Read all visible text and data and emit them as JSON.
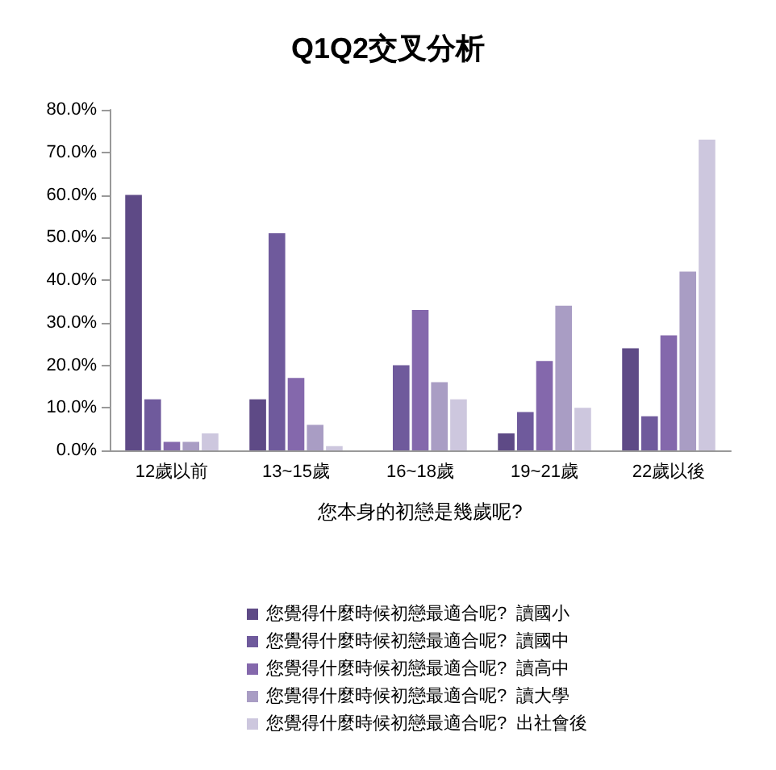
{
  "chart_data": {
    "type": "bar",
    "title": "Q1Q2交叉分析",
    "xlabel": "您本身的初戀是幾歲呢?",
    "categories": [
      "12歲以前",
      "13~15歲",
      "16~18歲",
      "19~21歲",
      "22歲以後"
    ],
    "series": [
      {
        "name": "您覺得什麼時候初戀最適合呢?  讀國小",
        "color": "#5e4a86",
        "values": [
          60,
          12,
          0,
          4,
          24
        ]
      },
      {
        "name": "您覺得什麼時候初戀最適合呢?  讀國中",
        "color": "#6f5a9c",
        "values": [
          12,
          51,
          20,
          9,
          8
        ]
      },
      {
        "name": "您覺得什麼時候初戀最適合呢?  讀高中",
        "color": "#8468ac",
        "values": [
          2,
          17,
          33,
          21,
          27
        ]
      },
      {
        "name": "您覺得什麼時候初戀最適合呢?  讀大學",
        "color": "#a99dc4",
        "values": [
          2,
          6,
          16,
          34,
          42
        ]
      },
      {
        "name": "您覺得什麼時候初戀最適合呢?  出社會後",
        "color": "#cdc7de",
        "values": [
          4,
          1,
          12,
          10,
          73
        ]
      }
    ],
    "ylim": [
      0,
      80
    ],
    "yticks": [
      {
        "value": 0,
        "label": "0.0%"
      },
      {
        "value": 10,
        "label": "10.0%"
      },
      {
        "value": 20,
        "label": "20.0%"
      },
      {
        "value": 30,
        "label": "30.0%"
      },
      {
        "value": 40,
        "label": "40.0%"
      },
      {
        "value": 50,
        "label": "50.0%"
      },
      {
        "value": 60,
        "label": "60.0%"
      },
      {
        "value": 70,
        "label": "70.0%"
      },
      {
        "value": 80,
        "label": "80.0%"
      }
    ],
    "grid": false,
    "legend": "bottom"
  }
}
